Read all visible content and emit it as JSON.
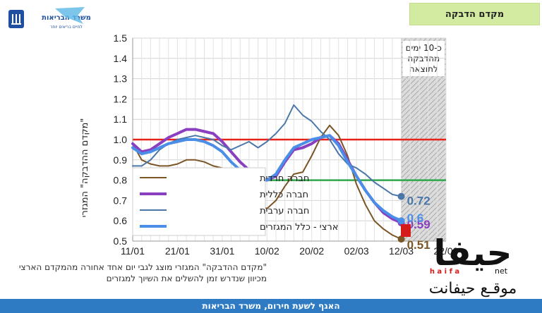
{
  "header": {
    "title": "מקדם הדבקה",
    "ministry_logo_text": "משרד הבריאות",
    "ministry_logo_tagline": "לחיים בריאים יותר"
  },
  "chart_data": {
    "type": "line",
    "ylabel": "\"מקדם ההדבקה\" המגזרי",
    "ylim": [
      0.5,
      1.5
    ],
    "yticks": [
      "0.5",
      "0.6",
      "0.7",
      "0.8",
      "0.9",
      "1.0",
      "1.1",
      "1.2",
      "1.3",
      "1.4",
      "1.5"
    ],
    "x_start": "2021-01-11",
    "x_end": "2021-03-22",
    "xticks": [
      "11/01",
      "21/01",
      "31/01",
      "10/02",
      "20/02",
      "02/03",
      "12/03",
      "22/03"
    ],
    "grid": true,
    "reference_lines": [
      {
        "y": 1.0,
        "color": "#e8221b"
      },
      {
        "y": 0.8,
        "color": "#2ea84a"
      }
    ],
    "forecast_region": {
      "from": "2021-03-12",
      "to": "2021-03-22",
      "label": "כ-10 ימים מהדבקה לתוצאה"
    },
    "legend_position": "left",
    "series": [
      {
        "name": "חברה חרדית",
        "color": "#7a5526",
        "width": 2,
        "end_label": "0.51",
        "points": [
          [
            "2021-01-11",
            0.98
          ],
          [
            "2021-01-13",
            0.9
          ],
          [
            "2021-01-15",
            0.88
          ],
          [
            "2021-01-17",
            0.87
          ],
          [
            "2021-01-19",
            0.87
          ],
          [
            "2021-01-21",
            0.88
          ],
          [
            "2021-01-23",
            0.9
          ],
          [
            "2021-01-25",
            0.9
          ],
          [
            "2021-01-27",
            0.89
          ],
          [
            "2021-01-29",
            0.87
          ],
          [
            "2021-01-31",
            0.86
          ],
          [
            "2021-02-02",
            0.83
          ],
          [
            "2021-02-04",
            0.78
          ],
          [
            "2021-02-06",
            0.72
          ],
          [
            "2021-02-08",
            0.68
          ],
          [
            "2021-02-10",
            0.66
          ],
          [
            "2021-02-12",
            0.7
          ],
          [
            "2021-02-14",
            0.77
          ],
          [
            "2021-02-16",
            0.83
          ],
          [
            "2021-02-18",
            0.84
          ],
          [
            "2021-02-20",
            0.92
          ],
          [
            "2021-02-22",
            1.01
          ],
          [
            "2021-02-24",
            1.07
          ],
          [
            "2021-02-26",
            1.02
          ],
          [
            "2021-02-28",
            0.92
          ],
          [
            "2021-03-02",
            0.78
          ],
          [
            "2021-03-04",
            0.68
          ],
          [
            "2021-03-06",
            0.6
          ],
          [
            "2021-03-08",
            0.56
          ],
          [
            "2021-03-10",
            0.53
          ],
          [
            "2021-03-12",
            0.51
          ]
        ]
      },
      {
        "name": "חברה כללית",
        "color": "#8a3fc0",
        "width": 4,
        "end_label": "0.59",
        "points": [
          [
            "2021-01-11",
            0.98
          ],
          [
            "2021-01-13",
            0.94
          ],
          [
            "2021-01-15",
            0.95
          ],
          [
            "2021-01-17",
            0.98
          ],
          [
            "2021-01-19",
            1.01
          ],
          [
            "2021-01-21",
            1.03
          ],
          [
            "2021-01-23",
            1.05
          ],
          [
            "2021-01-25",
            1.05
          ],
          [
            "2021-01-27",
            1.04
          ],
          [
            "2021-01-29",
            1.03
          ],
          [
            "2021-01-31",
            0.99
          ],
          [
            "2021-02-02",
            0.94
          ],
          [
            "2021-02-04",
            0.89
          ],
          [
            "2021-02-06",
            0.85
          ],
          [
            "2021-02-08",
            0.81
          ],
          [
            "2021-02-10",
            0.8
          ],
          [
            "2021-02-12",
            0.82
          ],
          [
            "2021-02-14",
            0.89
          ],
          [
            "2021-02-16",
            0.95
          ],
          [
            "2021-02-18",
            0.96
          ],
          [
            "2021-02-20",
            0.98
          ],
          [
            "2021-02-22",
            1.01
          ],
          [
            "2021-02-24",
            1.02
          ],
          [
            "2021-02-26",
            0.98
          ],
          [
            "2021-02-28",
            0.9
          ],
          [
            "2021-03-02",
            0.82
          ],
          [
            "2021-03-04",
            0.75
          ],
          [
            "2021-03-06",
            0.69
          ],
          [
            "2021-03-08",
            0.64
          ],
          [
            "2021-03-10",
            0.61
          ],
          [
            "2021-03-12",
            0.59
          ]
        ]
      },
      {
        "name": "חברה ערבית",
        "color": "#4a77a8",
        "width": 2,
        "end_label": "0.72",
        "points": [
          [
            "2021-01-11",
            0.87
          ],
          [
            "2021-01-13",
            0.87
          ],
          [
            "2021-01-15",
            0.9
          ],
          [
            "2021-01-17",
            0.95
          ],
          [
            "2021-01-19",
            0.98
          ],
          [
            "2021-01-21",
            1.0
          ],
          [
            "2021-01-23",
            1.01
          ],
          [
            "2021-01-25",
            1.02
          ],
          [
            "2021-01-27",
            1.01
          ],
          [
            "2021-01-29",
            1.0
          ],
          [
            "2021-01-31",
            0.97
          ],
          [
            "2021-02-02",
            0.95
          ],
          [
            "2021-02-04",
            0.97
          ],
          [
            "2021-02-06",
            0.99
          ],
          [
            "2021-02-08",
            0.96
          ],
          [
            "2021-02-10",
            0.99
          ],
          [
            "2021-02-12",
            1.03
          ],
          [
            "2021-02-14",
            1.08
          ],
          [
            "2021-02-16",
            1.17
          ],
          [
            "2021-02-18",
            1.12
          ],
          [
            "2021-02-20",
            1.09
          ],
          [
            "2021-02-22",
            1.04
          ],
          [
            "2021-02-24",
            1.0
          ],
          [
            "2021-02-26",
            0.93
          ],
          [
            "2021-02-28",
            0.88
          ],
          [
            "2021-03-02",
            0.86
          ],
          [
            "2021-03-04",
            0.83
          ],
          [
            "2021-03-06",
            0.79
          ],
          [
            "2021-03-08",
            0.76
          ],
          [
            "2021-03-10",
            0.73
          ],
          [
            "2021-03-12",
            0.72
          ]
        ]
      },
      {
        "name": "ארצי - כלל המגזרים",
        "color": "#4a8ee8",
        "width": 4,
        "end_label": "0.6",
        "points": [
          [
            "2021-01-11",
            0.96
          ],
          [
            "2021-01-13",
            0.93
          ],
          [
            "2021-01-15",
            0.94
          ],
          [
            "2021-01-17",
            0.96
          ],
          [
            "2021-01-19",
            0.98
          ],
          [
            "2021-01-21",
            0.99
          ],
          [
            "2021-01-23",
            1.0
          ],
          [
            "2021-01-25",
            1.0
          ],
          [
            "2021-01-27",
            0.99
          ],
          [
            "2021-01-29",
            0.97
          ],
          [
            "2021-01-31",
            0.94
          ],
          [
            "2021-02-02",
            0.89
          ],
          [
            "2021-02-04",
            0.85
          ],
          [
            "2021-02-06",
            0.82
          ],
          [
            "2021-02-08",
            0.8
          ],
          [
            "2021-02-10",
            0.8
          ],
          [
            "2021-02-12",
            0.83
          ],
          [
            "2021-02-14",
            0.9
          ],
          [
            "2021-02-16",
            0.96
          ],
          [
            "2021-02-18",
            0.98
          ],
          [
            "2021-02-20",
            1.0
          ],
          [
            "2021-02-22",
            1.01
          ],
          [
            "2021-02-24",
            1.02
          ],
          [
            "2021-02-26",
            0.97
          ],
          [
            "2021-02-28",
            0.89
          ],
          [
            "2021-03-02",
            0.82
          ],
          [
            "2021-03-04",
            0.75
          ],
          [
            "2021-03-06",
            0.69
          ],
          [
            "2021-03-08",
            0.65
          ],
          [
            "2021-03-10",
            0.62
          ],
          [
            "2021-03-12",
            0.6
          ]
        ]
      }
    ]
  },
  "footnote": {
    "line1": "\"מקדם ההדבקה\" המגזרי מוצג לגבי יום אחד אחורה מהמקדם הארצי",
    "line2": "מכיוון שנדרש זמן להשלים את השיוך למגזרים"
  },
  "footer": {
    "text": "האגף לשעת חירום, משרד הבריאות"
  },
  "watermark": {
    "brand": "حيفا",
    "sub": "h a i f a",
    "suffix": "net",
    "tagline": "موقـع حيفانت"
  }
}
